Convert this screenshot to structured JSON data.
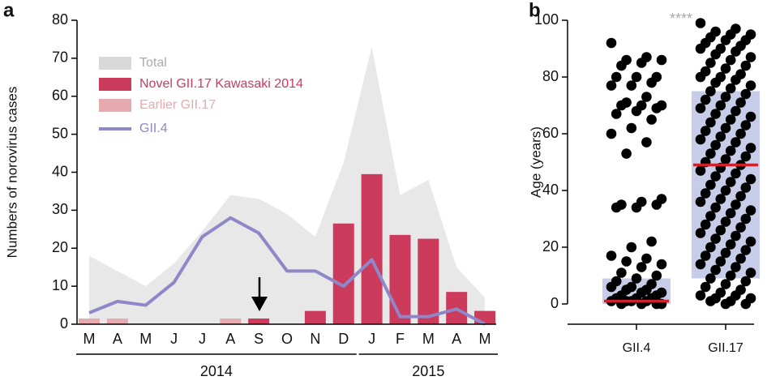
{
  "chart_data": [
    {
      "type": "bar",
      "panel_label": "a",
      "ylabel": "Numbers of norovirus cases",
      "categories": [
        "M",
        "A",
        "M",
        "J",
        "J",
        "A",
        "S",
        "O",
        "N",
        "D",
        "J",
        "F",
        "M",
        "A",
        "M"
      ],
      "groups": [
        {
          "label": "2014",
          "count": 10
        },
        {
          "label": "2015",
          "count": 5
        }
      ],
      "ylim": [
        0,
        80
      ],
      "yticks": [
        0,
        10,
        20,
        30,
        40,
        50,
        60,
        70,
        80
      ],
      "legend": "upper left",
      "series": [
        {
          "name": "Total",
          "type": "area",
          "color": "#e8e8e8",
          "values": [
            18,
            14,
            10,
            16,
            24.5,
            34,
            33,
            29,
            23,
            42.5,
            73,
            34,
            38,
            15,
            7
          ]
        },
        {
          "name": "Novel GII.17 Kawasaki 2014",
          "type": "bar",
          "color": "#cc3a5c",
          "values": [
            null,
            null,
            null,
            null,
            null,
            null,
            1.5,
            null,
            3.5,
            26.5,
            39.5,
            23.5,
            22.5,
            8.5,
            3.5
          ]
        },
        {
          "name": "Earlier GII.17",
          "type": "bar",
          "color": "#e6a9ae",
          "values": [
            1.5,
            1.5,
            null,
            null,
            null,
            1.5,
            null,
            null,
            null,
            null,
            null,
            null,
            null,
            null,
            null
          ]
        },
        {
          "name": "GII.4",
          "type": "line",
          "color": "#8f88c8",
          "values": [
            3,
            6,
            5,
            11,
            23,
            28,
            24,
            14,
            14,
            10,
            17,
            2,
            2,
            4,
            0
          ]
        }
      ]
    },
    {
      "type": "scatter",
      "panel_label": "b",
      "ylabel": "Age (years)",
      "annotation": "****",
      "ylim": [
        0,
        100
      ],
      "yticks": [
        0,
        20,
        40,
        60,
        80,
        100
      ],
      "box_color": "#c7cde9",
      "median_color": "#d0202e",
      "color": "#000000",
      "series": [
        {
          "name": "GII.4",
          "median": 1,
          "q1": 0,
          "q3": 9,
          "values": [
            92,
            87,
            86,
            86,
            85,
            84,
            80,
            80,
            80,
            78,
            77,
            77,
            73,
            71,
            70,
            70,
            70,
            69,
            68,
            67,
            65,
            62,
            60,
            57,
            53,
            37,
            36,
            35,
            35,
            34,
            34,
            22,
            20,
            17,
            16,
            15,
            14,
            13,
            11,
            10,
            9,
            8,
            7,
            6,
            6,
            5,
            5,
            4,
            4,
            3,
            3,
            2,
            2,
            2,
            1,
            1,
            1,
            1,
            0,
            0,
            0,
            0
          ]
        },
        {
          "name": "GII.17",
          "median": 49,
          "q1": 9,
          "q3": 75,
          "values": [
            99,
            97,
            96,
            95,
            95,
            94,
            93,
            93,
            92,
            91,
            90,
            90,
            89,
            88,
            87,
            86,
            85,
            84,
            83,
            82,
            81,
            80,
            80,
            79,
            78,
            77,
            76,
            75,
            74,
            73,
            72,
            71,
            70,
            69,
            68,
            67,
            66,
            65,
            64,
            63,
            62,
            61,
            60,
            59,
            58,
            57,
            56,
            55,
            54,
            53,
            52,
            51,
            50,
            49,
            48,
            47,
            46,
            45,
            44,
            43,
            42,
            41,
            40,
            39,
            38,
            37,
            36,
            35,
            34,
            33,
            32,
            31,
            30,
            29,
            28,
            27,
            26,
            25,
            24,
            23,
            22,
            21,
            20,
            19,
            18,
            17,
            16,
            15,
            14,
            13,
            12,
            11,
            10,
            9,
            8,
            7,
            6,
            5,
            4,
            3,
            3,
            2,
            2,
            1,
            1,
            0,
            0
          ]
        }
      ]
    }
  ]
}
